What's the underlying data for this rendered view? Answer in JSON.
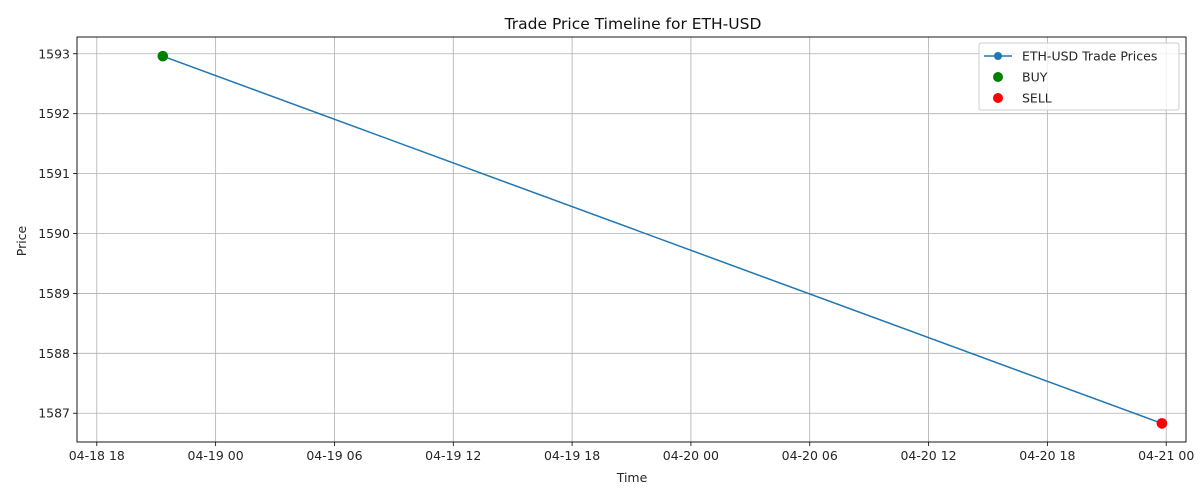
{
  "chart_data": {
    "type": "line",
    "title": "Trade Price Timeline for ETH-USD",
    "xlabel": "Time",
    "ylabel": "Price",
    "x_ticks": [
      "04-18 18",
      "04-19 00",
      "04-19 06",
      "04-19 12",
      "04-19 18",
      "04-20 00",
      "04-20 06",
      "04-20 12",
      "04-20 18",
      "04-21 00"
    ],
    "y_ticks": [
      "1587",
      "1588",
      "1589",
      "1590",
      "1591",
      "1592",
      "1593"
    ],
    "xlim": [
      "2023-04-18 17:00",
      "2023-04-21 01:00"
    ],
    "ylim": [
      1586.52,
      1593.28
    ],
    "grid": true,
    "legend_position": "top-right",
    "series": [
      {
        "name": "ETH-USD Trade Prices",
        "kind": "line",
        "color": "#1f77b4",
        "marker": "circle",
        "points": [
          {
            "x": "2023-04-18 21:20",
            "y": 1592.96
          },
          {
            "x": "2023-04-20 23:47",
            "y": 1586.83
          }
        ]
      },
      {
        "name": "BUY",
        "kind": "scatter",
        "color": "#008000",
        "points": [
          {
            "x": "2023-04-18 21:20",
            "y": 1592.96
          }
        ]
      },
      {
        "name": "SELL",
        "kind": "scatter",
        "color": "#ff0000",
        "points": [
          {
            "x": "2023-04-20 23:47",
            "y": 1586.83
          }
        ]
      }
    ]
  }
}
